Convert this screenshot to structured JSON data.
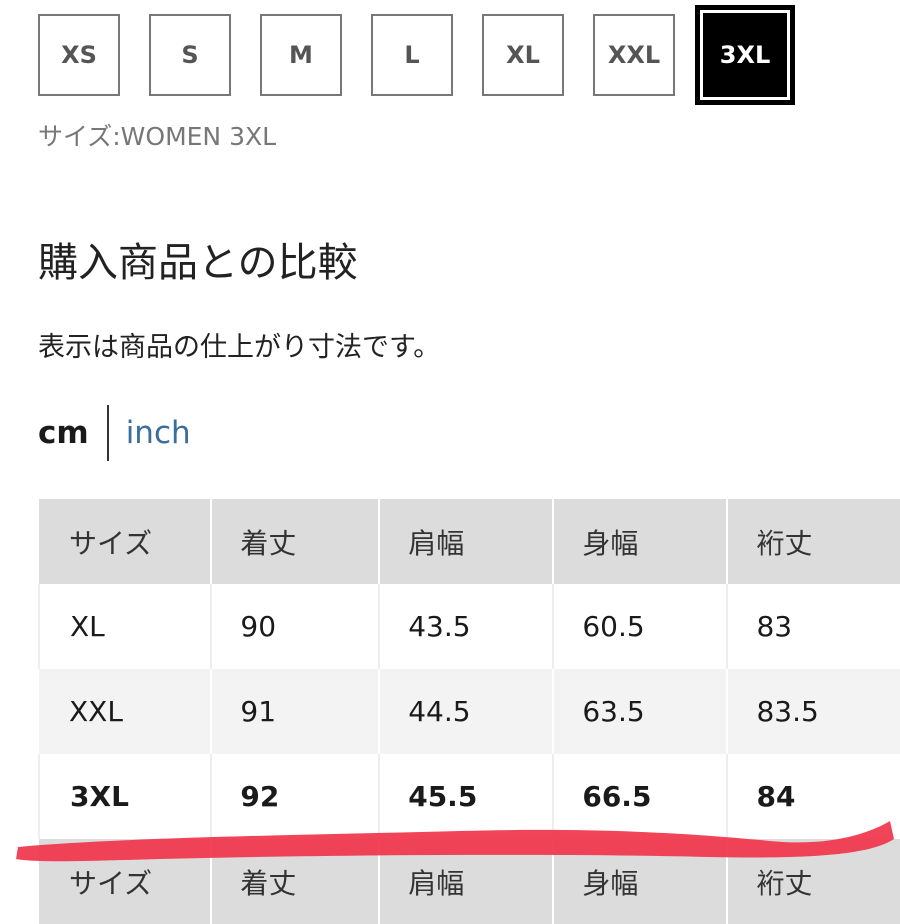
{
  "sizes": [
    {
      "label": "XS"
    },
    {
      "label": "S"
    },
    {
      "label": "M"
    },
    {
      "label": "L"
    },
    {
      "label": "XL"
    },
    {
      "label": "XXL"
    },
    {
      "label": "3XL",
      "selected": true
    }
  ],
  "size_label": "サイズ:WOMEN 3XL",
  "section_title": "購入商品との比較",
  "note": "表示は商品の仕上がり寸法です。",
  "units": {
    "cm": "cm",
    "inch": "inch",
    "active": "cm",
    "inch_color": "#3a6e9c"
  },
  "table": {
    "headers": [
      "サイズ",
      "着丈",
      "肩幅",
      "身幅",
      "裄丈"
    ],
    "rows": [
      [
        "XL",
        "90",
        "43.5",
        "60.5",
        "83"
      ],
      [
        "XXL",
        "91",
        "44.5",
        "63.5",
        "83.5"
      ],
      [
        "3XL",
        "92",
        "45.5",
        "66.5",
        "84"
      ]
    ]
  },
  "highlight_color": "#f0344a"
}
